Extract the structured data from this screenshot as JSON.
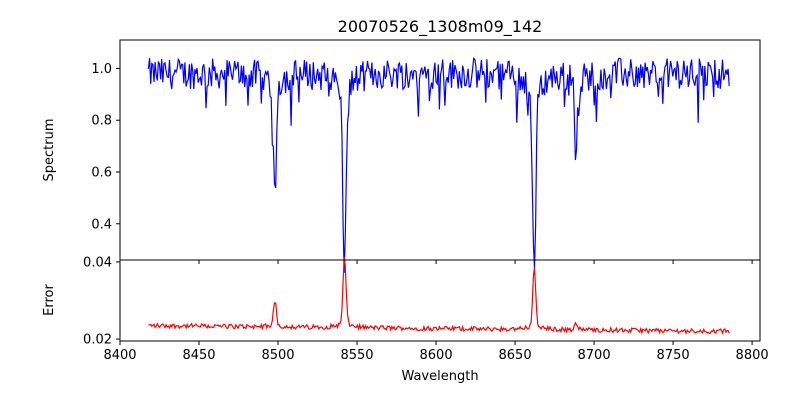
{
  "chart_data": [
    {
      "type": "line",
      "title": "20070526_1308m09_142",
      "xlabel": "",
      "ylabel": "Spectrum",
      "xlim": [
        8400,
        8805
      ],
      "ylim": [
        0.26,
        1.11
      ],
      "xticks": [
        8400,
        8450,
        8500,
        8550,
        8600,
        8650,
        8700,
        8750,
        8800
      ],
      "yticks": [
        0.4,
        0.6,
        0.8,
        1.0
      ],
      "ytick_labels": [
        "0.4",
        "0.6",
        "0.8",
        "1.0"
      ],
      "x_range": [
        8418,
        8786
      ],
      "continuum": 0.98,
      "absorption_lines": [
        {
          "center": 8498.0,
          "depth": 0.42
        },
        {
          "center": 8542.1,
          "depth": 0.66
        },
        {
          "center": 8662.1,
          "depth": 0.68
        },
        {
          "center": 8688.6,
          "depth": 0.28
        }
      ],
      "series": [
        {
          "color": "#0000ff"
        }
      ],
      "grid": false
    },
    {
      "type": "line",
      "xlabel": "Wavelength",
      "ylabel": "Error",
      "xlim": [
        8400,
        8805
      ],
      "ylim": [
        0.0195,
        0.0405
      ],
      "xticks": [
        8400,
        8450,
        8500,
        8550,
        8600,
        8650,
        8700,
        8750,
        8800
      ],
      "xtick_labels": [
        "8400",
        "8450",
        "8500",
        "8550",
        "8600",
        "8650",
        "8700",
        "8750",
        "8800"
      ],
      "yticks": [
        0.02,
        0.04
      ],
      "ytick_labels": [
        "0.02",
        "0.04"
      ],
      "x_range": [
        8418,
        8786
      ],
      "baseline_start": 0.0235,
      "baseline_end": 0.022,
      "peaks": [
        {
          "center": 8498.0,
          "height": 0.0062
        },
        {
          "center": 8542.1,
          "height": 0.0175
        },
        {
          "center": 8662.1,
          "height": 0.0155
        },
        {
          "center": 8688.6,
          "height": 0.0018
        }
      ],
      "series": [
        {
          "color": "#ff0000"
        }
      ],
      "grid": false
    }
  ]
}
